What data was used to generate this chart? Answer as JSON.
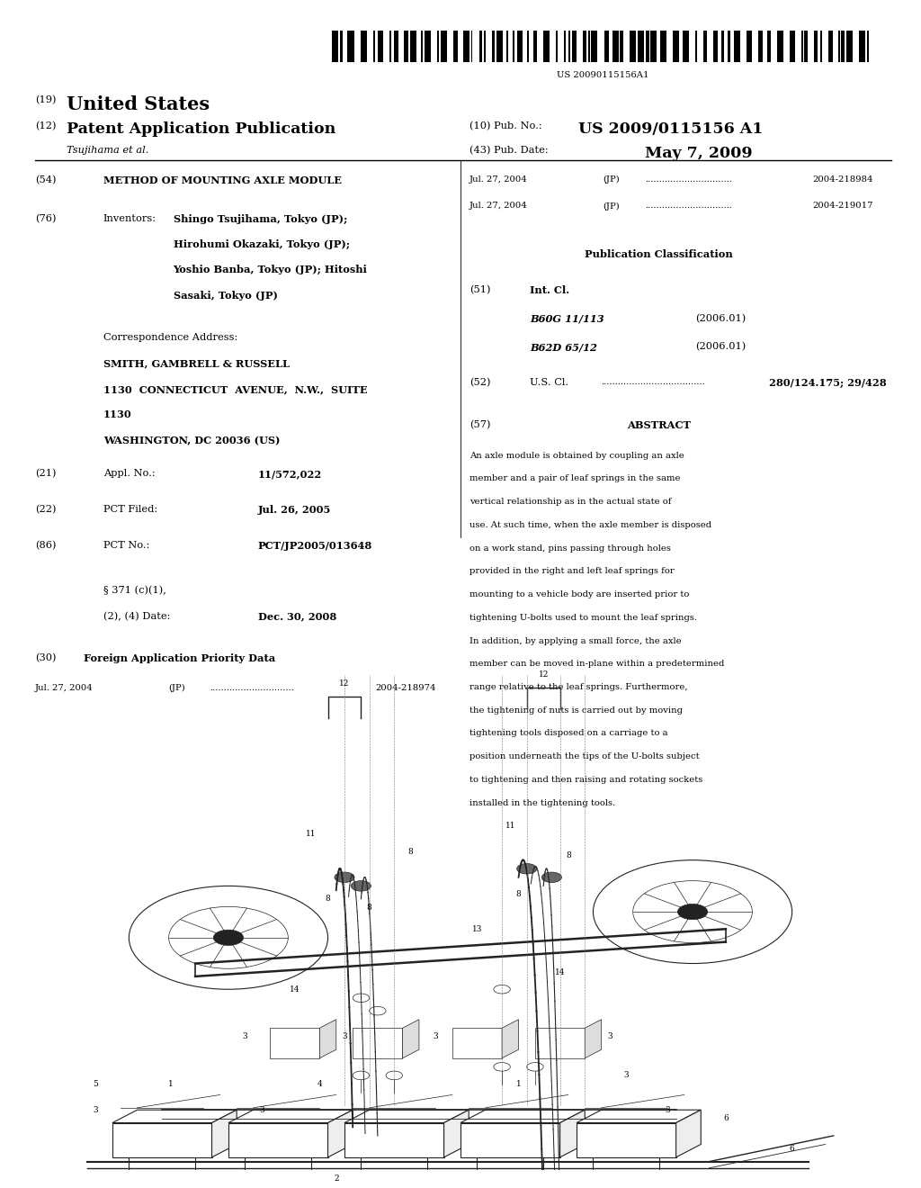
{
  "background_color": "#ffffff",
  "barcode_text": "US 20090115156A1",
  "country": "United States",
  "doc_type": "Patent Application Publication",
  "doc_number_label": "(10) Pub. No.:",
  "doc_number": "US 2009/0115156 A1",
  "pub_date_label": "(43) Pub. Date:",
  "pub_date": "May 7, 2009",
  "inventors_label_italic": "Tsujihama et al.",
  "num19": "(19)",
  "num12": "(12)",
  "title_num": "(54)",
  "title": "METHOD OF MOUNTING AXLE MODULE",
  "inventors_num": "(76)",
  "inventors_label2": "Inventors:",
  "inv_line1": "Shingo Tsujihama, Tokyo (JP);",
  "inv_line2": "Hirohumi Okazaki, Tokyo (JP);",
  "inv_line3": "Yoshio Banba, Tokyo (JP); Hitoshi",
  "inv_line4": "Sasaki, Tokyo (JP)",
  "correspondence_label": "Correspondence Address:",
  "corr_line1": "SMITH, GAMBRELL & RUSSELL",
  "corr_line2": "1130  CONNECTICUT  AVENUE,  N.W.,  SUITE",
  "corr_line3": "1130",
  "corr_line4": "WASHINGTON, DC 20036 (US)",
  "appl_label": "Appl. No.:",
  "appl_value": "11/572,022",
  "pct_filed_label": "PCT Filed:",
  "pct_filed_value": "Jul. 26, 2005",
  "pct_no_label": "PCT No.:",
  "pct_no_value": "PCT/JP2005/013648",
  "section371a": "§ 371 (c)(1),",
  "section371b": "(2), (4) Date:",
  "date371_value": "Dec. 30, 2008",
  "foreign_label": "Foreign Application Priority Data",
  "foreign1_date": "Jul. 27, 2004",
  "foreign1_num": "2004-218974",
  "foreign2_date": "Jul. 27, 2004",
  "foreign2_num": "2004-218984",
  "foreign3_date": "Jul. 27, 2004",
  "foreign3_num": "2004-219017",
  "pub_class_label": "Publication Classification",
  "intcl_label": "Int. Cl.",
  "intcl1_class": "B60G 11/113",
  "intcl1_year": "(2006.01)",
  "intcl2_class": "B62D 65/12",
  "intcl2_year": "(2006.01)",
  "uscl_label": "U.S. Cl.",
  "uscl_value": "280/124.175; 29/428",
  "abstract_label": "ABSTRACT",
  "abstract_text": "An axle module is obtained by coupling an axle member and a pair of leaf springs in the same vertical relationship as in the actual state of use. At such time, when the axle member is disposed on a work stand, pins passing through holes provided in the right and left leaf springs for mounting to a vehicle body are inserted prior to tightening U-bolts used to mount the leaf springs. In addition, by applying a small force, the axle member can be moved in-plane within a predetermined range relative to the leaf springs. Furthermore, the tightening of nuts is carried out by moving tightening tools disposed on a carriage to a position underneath the tips of the U-bolts subject to tightening and then raising and rotating sockets installed in the tightening tools."
}
